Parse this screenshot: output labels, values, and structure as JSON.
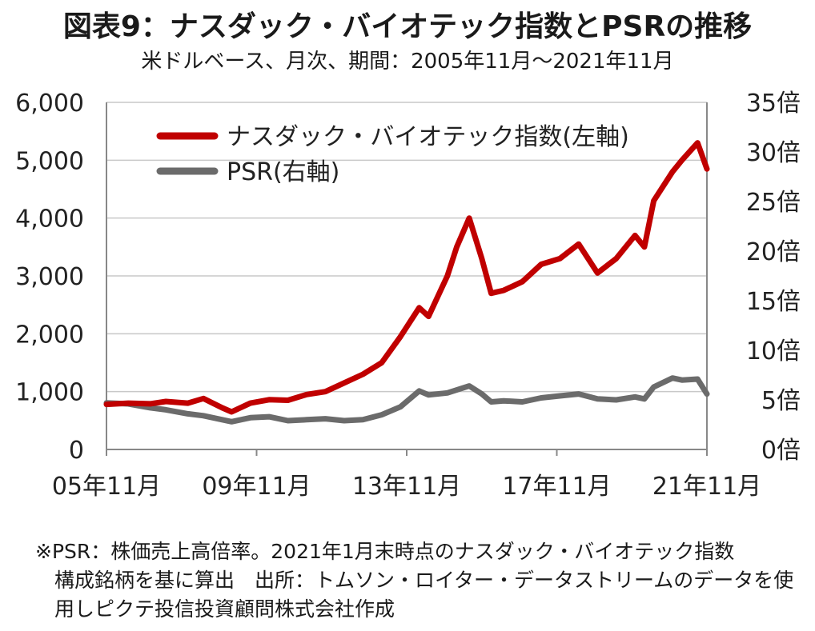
{
  "header": {
    "title": "図表9：ナスダック・バイオテック指数とPSRの推移",
    "subtitle": "米ドルベース、月次、期間：2005年11月～2021年11月"
  },
  "note": {
    "line1": "※PSR：株価売上高倍率。2021年1月末時点のナスダック・バイオテック指数",
    "line2": "構成銘柄を基に算出　出所：トムソン・ロイター・データストリームのデータを使",
    "line3": "用しピクテ投信投資顧問株式会社作成"
  },
  "colors": {
    "index": "#c00000",
    "psr": "#6b6b6b",
    "grid": "#c8c8c8",
    "axis": "#888888"
  },
  "chart_data": {
    "type": "line",
    "x_start": "2005-11",
    "x_end": "2021-11",
    "x_ticks": [
      "05年11月",
      "09年11月",
      "13年11月",
      "17年11月",
      "21年11月"
    ],
    "y_left": {
      "min": 0,
      "max": 6000,
      "ticks": [
        "0",
        "1,000",
        "2,000",
        "3,000",
        "4,000",
        "5,000",
        "6,000"
      ]
    },
    "y_right": {
      "min": 0,
      "max": 35,
      "ticks": [
        "0倍",
        "5倍",
        "10倍",
        "15倍",
        "20倍",
        "25倍",
        "30倍",
        "35倍"
      ]
    },
    "grid": "horizontal",
    "legend_position": "top-left",
    "series": [
      {
        "name": "ナスダック・バイオテック指数(左軸)",
        "axis": "left",
        "points": [
          [
            "2005-11",
            780
          ],
          [
            "2006-06",
            800
          ],
          [
            "2007-01",
            790
          ],
          [
            "2007-06",
            830
          ],
          [
            "2008-01",
            800
          ],
          [
            "2008-06",
            880
          ],
          [
            "2008-12",
            720
          ],
          [
            "2009-03",
            650
          ],
          [
            "2009-09",
            800
          ],
          [
            "2010-03",
            860
          ],
          [
            "2010-09",
            850
          ],
          [
            "2011-03",
            950
          ],
          [
            "2011-09",
            1000
          ],
          [
            "2012-03",
            1150
          ],
          [
            "2012-09",
            1300
          ],
          [
            "2013-03",
            1500
          ],
          [
            "2013-09",
            1950
          ],
          [
            "2014-03",
            2450
          ],
          [
            "2014-06",
            2300
          ],
          [
            "2014-12",
            3000
          ],
          [
            "2015-03",
            3500
          ],
          [
            "2015-07",
            4000
          ],
          [
            "2015-11",
            3300
          ],
          [
            "2016-02",
            2700
          ],
          [
            "2016-06",
            2750
          ],
          [
            "2016-12",
            2900
          ],
          [
            "2017-06",
            3200
          ],
          [
            "2017-12",
            3300
          ],
          [
            "2018-06",
            3550
          ],
          [
            "2018-12",
            3050
          ],
          [
            "2019-06",
            3300
          ],
          [
            "2019-12",
            3700
          ],
          [
            "2020-03",
            3500
          ],
          [
            "2020-06",
            4300
          ],
          [
            "2020-12",
            4800
          ],
          [
            "2021-03",
            5000
          ],
          [
            "2021-08",
            5300
          ],
          [
            "2021-11",
            4850
          ]
        ]
      },
      {
        "name": "PSR(右軸)",
        "axis": "right",
        "points": [
          [
            "2005-11",
            4.7
          ],
          [
            "2006-06",
            4.6
          ],
          [
            "2007-01",
            4.2
          ],
          [
            "2007-06",
            4.0
          ],
          [
            "2008-01",
            3.6
          ],
          [
            "2008-06",
            3.4
          ],
          [
            "2008-12",
            3.0
          ],
          [
            "2009-03",
            2.8
          ],
          [
            "2009-09",
            3.2
          ],
          [
            "2010-03",
            3.3
          ],
          [
            "2010-09",
            2.9
          ],
          [
            "2011-03",
            3.0
          ],
          [
            "2011-09",
            3.1
          ],
          [
            "2012-03",
            2.9
          ],
          [
            "2012-09",
            3.0
          ],
          [
            "2013-03",
            3.5
          ],
          [
            "2013-09",
            4.3
          ],
          [
            "2014-03",
            5.9
          ],
          [
            "2014-06",
            5.5
          ],
          [
            "2014-12",
            5.7
          ],
          [
            "2015-03",
            6.0
          ],
          [
            "2015-07",
            6.4
          ],
          [
            "2015-11",
            5.6
          ],
          [
            "2016-02",
            4.8
          ],
          [
            "2016-06",
            4.9
          ],
          [
            "2016-12",
            4.8
          ],
          [
            "2017-06",
            5.2
          ],
          [
            "2017-12",
            5.4
          ],
          [
            "2018-06",
            5.6
          ],
          [
            "2018-12",
            5.1
          ],
          [
            "2019-06",
            5.0
          ],
          [
            "2019-12",
            5.3
          ],
          [
            "2020-03",
            5.1
          ],
          [
            "2020-06",
            6.3
          ],
          [
            "2020-12",
            7.2
          ],
          [
            "2021-03",
            7.0
          ],
          [
            "2021-08",
            7.1
          ],
          [
            "2021-11",
            5.6
          ]
        ]
      }
    ]
  }
}
